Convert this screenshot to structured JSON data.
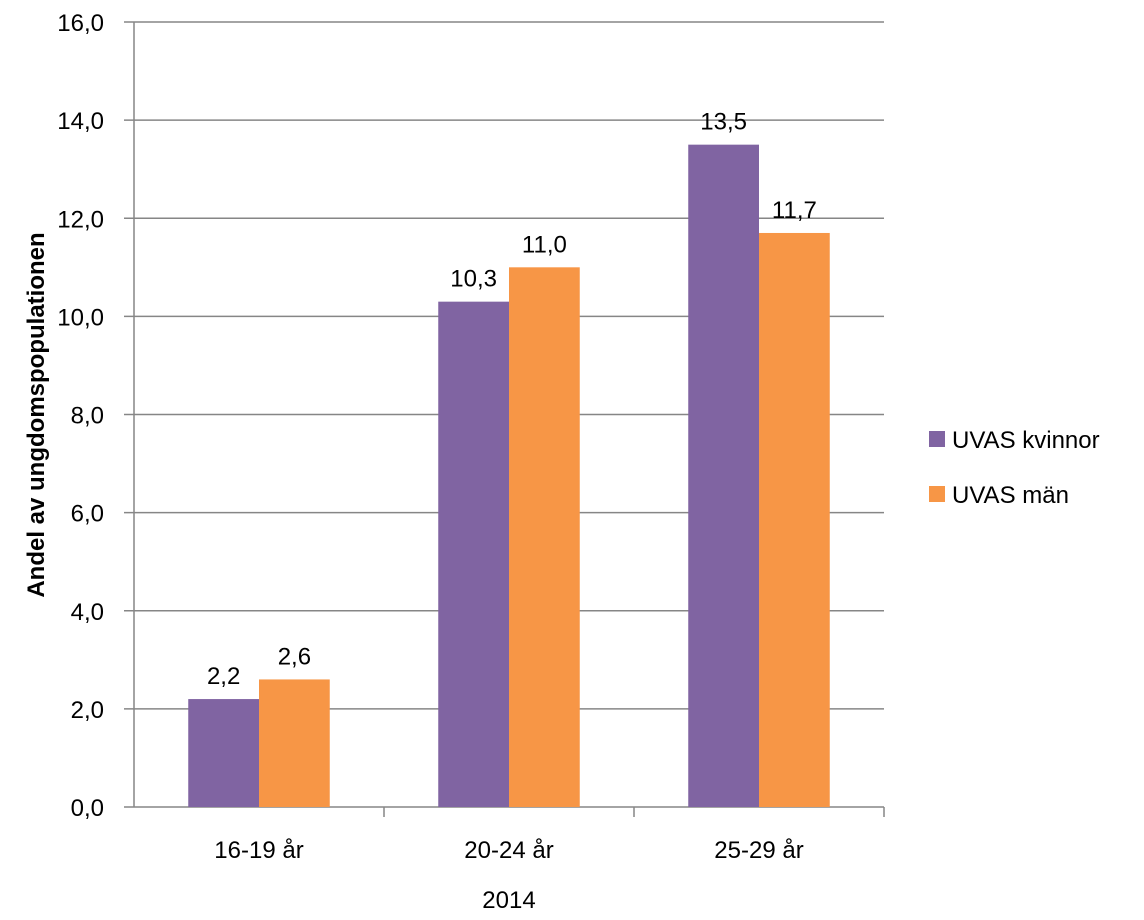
{
  "chart_data": {
    "type": "bar",
    "title": "",
    "ylabel": "Andel av ungdomspopulationen",
    "xlabel": "2014",
    "ylim": [
      0,
      16
    ],
    "yticks": [
      0,
      2,
      4,
      6,
      8,
      10,
      12,
      14,
      16
    ],
    "ytick_labels": [
      "0,0",
      "2,0",
      "4,0",
      "6,0",
      "8,0",
      "10,0",
      "12,0",
      "14,0",
      "16,0"
    ],
    "categories": [
      "16-19 år",
      "20-24 år",
      "25-29 år"
    ],
    "series": [
      {
        "name": "UVAS kvinnor",
        "color": "#8064a2",
        "values": [
          2.2,
          10.3,
          13.5
        ],
        "labels": [
          "2,2",
          "10,3",
          "13,5"
        ]
      },
      {
        "name": "UVAS män",
        "color": "#f79646",
        "values": [
          2.6,
          11.0,
          11.7
        ],
        "labels": [
          "2,6",
          "11,0",
          "11,7"
        ]
      }
    ],
    "grid": true,
    "legend_position": "right"
  }
}
